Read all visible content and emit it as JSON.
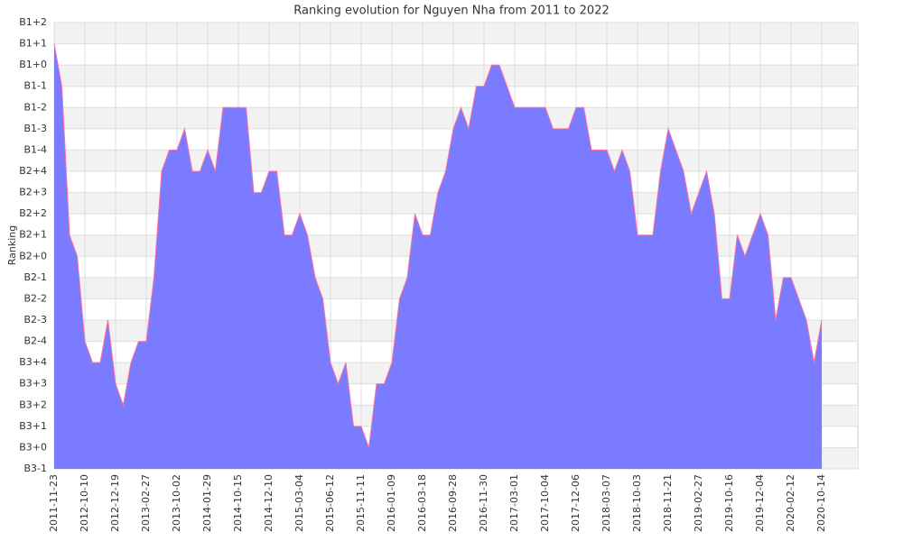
{
  "chart_data": {
    "type": "area",
    "title": "Ranking evolution for Nguyen Nha from 2011 to 2022",
    "y_label": "Ranking",
    "color": "#7b7bff",
    "line_color": "#ff6fa0",
    "grid": true,
    "ylim": [
      0,
      21
    ],
    "yticks": [
      {
        "value": 0,
        "label": "B3-1"
      },
      {
        "value": 1,
        "label": "B3+0"
      },
      {
        "value": 2,
        "label": "B3+1"
      },
      {
        "value": 3,
        "label": "B3+2"
      },
      {
        "value": 4,
        "label": "B3+3"
      },
      {
        "value": 5,
        "label": "B3+4"
      },
      {
        "value": 6,
        "label": "B2-4"
      },
      {
        "value": 7,
        "label": "B2-3"
      },
      {
        "value": 8,
        "label": "B2-2"
      },
      {
        "value": 9,
        "label": "B2-1"
      },
      {
        "value": 10,
        "label": "B2+0"
      },
      {
        "value": 11,
        "label": "B2+1"
      },
      {
        "value": 12,
        "label": "B2+2"
      },
      {
        "value": 13,
        "label": "B2+3"
      },
      {
        "value": 14,
        "label": "B2+4"
      },
      {
        "value": 15,
        "label": "B1-4"
      },
      {
        "value": 16,
        "label": "B1-3"
      },
      {
        "value": 17,
        "label": "B1-2"
      },
      {
        "value": 18,
        "label": "B1-1"
      },
      {
        "value": 19,
        "label": "B1+0"
      },
      {
        "value": 20,
        "label": "B1+1"
      },
      {
        "value": 21,
        "label": "B1+2"
      }
    ],
    "categories": [
      "2011-11-23",
      null,
      null,
      null,
      "2012-10-10",
      null,
      null,
      null,
      "2012-12-19",
      null,
      null,
      null,
      "2013-02-27",
      null,
      null,
      null,
      "2013-10-02",
      null,
      null,
      null,
      "2014-01-29",
      null,
      null,
      null,
      "2014-10-15",
      null,
      null,
      null,
      "2014-12-10",
      null,
      null,
      null,
      "2015-03-04",
      null,
      null,
      null,
      "2015-06-12",
      null,
      null,
      null,
      "2015-11-11",
      null,
      null,
      null,
      "2016-01-09",
      null,
      null,
      null,
      "2016-03-18",
      null,
      null,
      null,
      "2016-09-28",
      null,
      null,
      null,
      "2016-11-30",
      null,
      null,
      null,
      "2017-03-01",
      null,
      null,
      null,
      "2017-10-04",
      null,
      null,
      null,
      "2017-12-06",
      null,
      null,
      null,
      "2018-03-07",
      null,
      null,
      null,
      "2018-10-03",
      null,
      null,
      null,
      "2018-11-21",
      null,
      null,
      null,
      "2019-02-27",
      null,
      null,
      null,
      "2019-10-16",
      null,
      null,
      null,
      "2019-12-04",
      null,
      null,
      null,
      "2020-02-12",
      null,
      null,
      null,
      "2020-10-14"
    ],
    "values": [
      20,
      18,
      11,
      10,
      6,
      5,
      5,
      7,
      4,
      3,
      5,
      6,
      6,
      9,
      14,
      15,
      15,
      16,
      14,
      14,
      15,
      14,
      17,
      17,
      17,
      17,
      13,
      13,
      14,
      14,
      11,
      11,
      12,
      11,
      9,
      8,
      5,
      4,
      5,
      2,
      2,
      1,
      4,
      4,
      5,
      8,
      9,
      12,
      11,
      11,
      13,
      14,
      16,
      17,
      16,
      18,
      18,
      19,
      19,
      18,
      17,
      17,
      17,
      17,
      17,
      16,
      16,
      16,
      17,
      17,
      15,
      15,
      15,
      14,
      15,
      14,
      11,
      11,
      11,
      14,
      16,
      15,
      14,
      12,
      13,
      14,
      12,
      8,
      8,
      11,
      10,
      11,
      12,
      11,
      7,
      9,
      9,
      8,
      7,
      5,
      7
    ]
  }
}
